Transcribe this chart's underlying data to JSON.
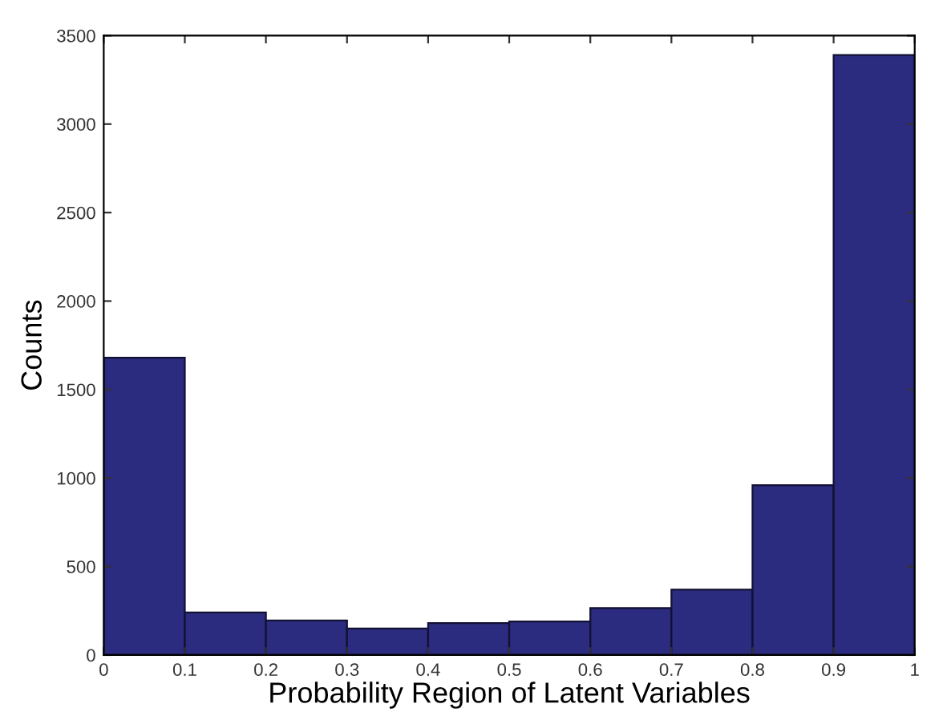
{
  "chart_data": {
    "type": "histogram",
    "xlabel": "Probability Region of Latent Variables",
    "ylabel": "Counts",
    "bins": [
      0,
      0.1,
      0.2,
      0.3,
      0.4,
      0.5,
      0.6,
      0.7,
      0.8,
      0.9,
      1
    ],
    "values": [
      1680,
      240,
      195,
      150,
      180,
      190,
      265,
      370,
      960,
      3390
    ],
    "color": "#2b2b7f",
    "xlim": [
      0,
      1
    ],
    "ylim": [
      0,
      3500
    ],
    "xticks": [
      0,
      0.1,
      0.2,
      0.3,
      0.4,
      0.5,
      0.6,
      0.7,
      0.8,
      0.9,
      1
    ],
    "yticks": [
      0,
      500,
      1000,
      1500,
      2000,
      2500,
      3000,
      3500
    ],
    "grid": false
  }
}
